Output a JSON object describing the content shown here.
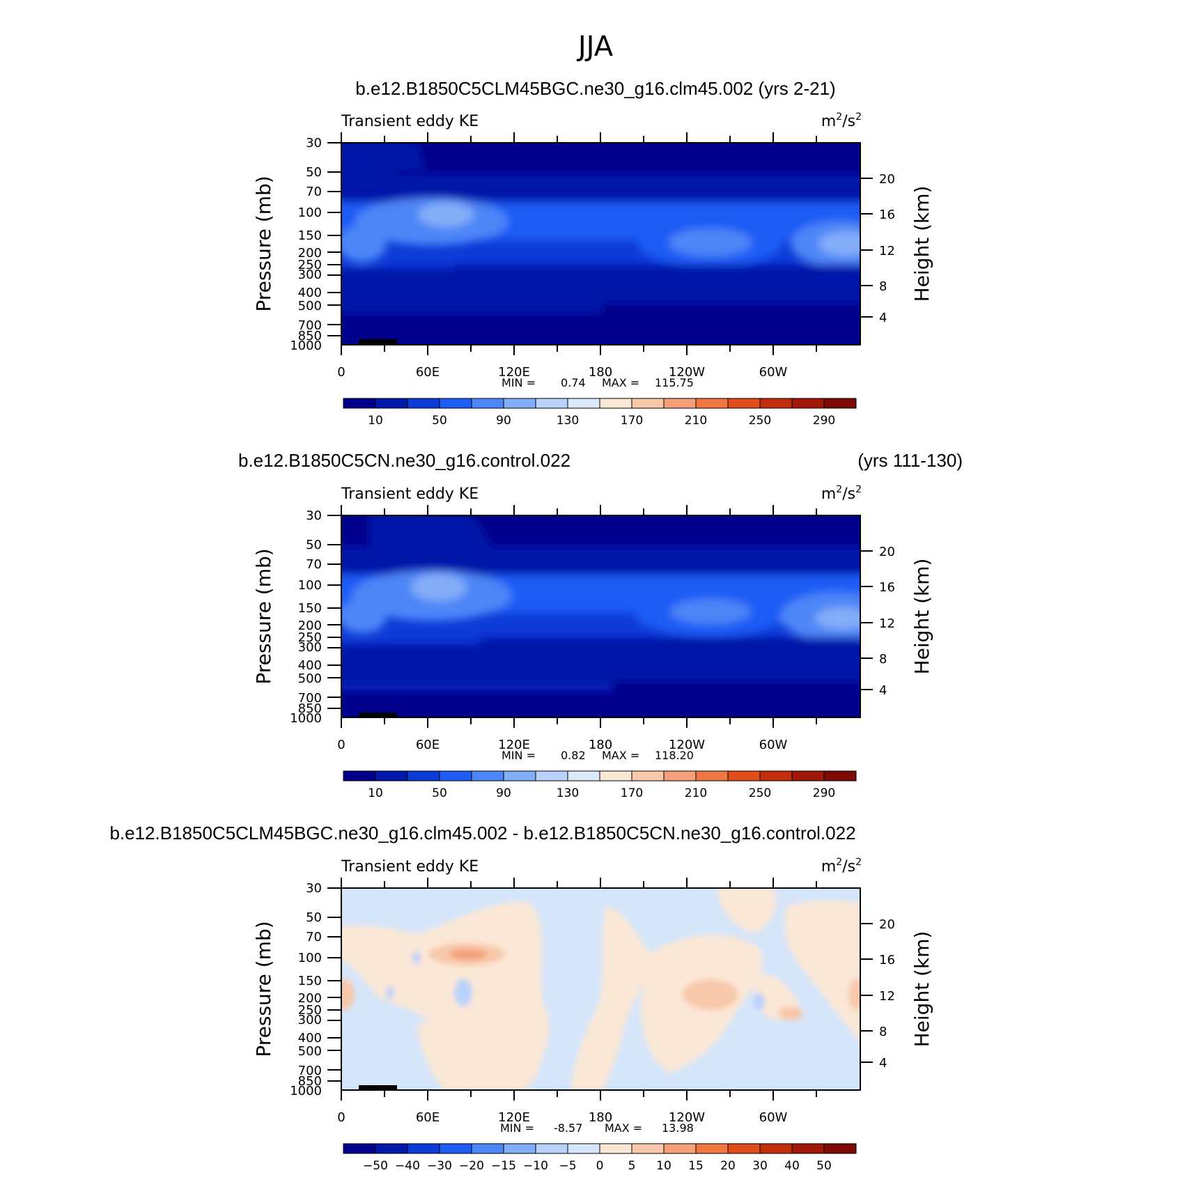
{
  "page_title": "JJA",
  "panels": [
    {
      "case_title": "b.e12.B1850C5CLM45BGC.ne30_g16.clm45.002 (yrs 2-21)",
      "years": "",
      "field_label": "Transient eddy KE",
      "units_base": "m",
      "units_exp1": "2",
      "units_mid": "/s",
      "units_exp2": "2",
      "min_label": "MIN =",
      "min_value": "0.74",
      "max_label": "MAX =",
      "max_value": "115.75",
      "colorbar": {
        "labels": [
          "10",
          "50",
          "90",
          "130",
          "170",
          "210",
          "250",
          "290"
        ],
        "colors": [
          "#00008c",
          "#0019a8",
          "#0d3bd8",
          "#1f5cf5",
          "#4d86f7",
          "#84adf8",
          "#b8d2fb",
          "#ddeafc",
          "#fbe7d6",
          "#f8c8aa",
          "#f5a07a",
          "#f07644",
          "#e04d1a",
          "#c22e0c",
          "#a11808",
          "#7d0a05"
        ]
      }
    },
    {
      "case_title": "b.e12.B1850C5CN.ne30_g16.control.022",
      "years": "(yrs 111-130)",
      "field_label": "Transient eddy KE",
      "units_base": "m",
      "units_exp1": "2",
      "units_mid": "/s",
      "units_exp2": "2",
      "min_label": "MIN =",
      "min_value": "0.82",
      "max_label": "MAX =",
      "max_value": "118.20",
      "colorbar": {
        "labels": [
          "10",
          "50",
          "90",
          "130",
          "170",
          "210",
          "250",
          "290"
        ],
        "colors": [
          "#00008c",
          "#0019a8",
          "#0d3bd8",
          "#1f5cf5",
          "#4d86f7",
          "#84adf8",
          "#b8d2fb",
          "#ddeafc",
          "#fbe7d6",
          "#f8c8aa",
          "#f5a07a",
          "#f07644",
          "#e04d1a",
          "#c22e0c",
          "#a11808",
          "#7d0a05"
        ]
      }
    },
    {
      "case_title": "b.e12.B1850C5CLM45BGC.ne30_g16.clm45.002 - b.e12.B1850C5CN.ne30_g16.control.022",
      "years": "",
      "field_label": "Transient eddy KE",
      "units_base": "m",
      "units_exp1": "2",
      "units_mid": "/s",
      "units_exp2": "2",
      "min_label": "MIN =",
      "min_value": "-8.57",
      "max_label": "MAX =",
      "max_value": "13.98",
      "colorbar": {
        "labels": [
          "−50",
          "−40",
          "−30",
          "−20",
          "−15",
          "−10",
          "−5",
          "0",
          "5",
          "10",
          "15",
          "20",
          "30",
          "40",
          "50"
        ],
        "colors": [
          "#00008c",
          "#0019a8",
          "#0d3bd8",
          "#1f5cf5",
          "#4d86f7",
          "#84adf8",
          "#b8d2fb",
          "#d5e6fb",
          "#fbe7d6",
          "#f8c8aa",
          "#f5a07a",
          "#f07644",
          "#e04d1a",
          "#c22e0c",
          "#a11808",
          "#7d0a05"
        ]
      }
    }
  ],
  "chart_data": [
    {
      "type": "heatmap",
      "title": "b.e12.B1850C5CLM45BGC.ne30_g16.clm45.002 (yrs 2-21)",
      "subtitle": "Transient eddy KE",
      "units": "m2/s2",
      "xlabel": "",
      "ylabel": "Pressure (mb)",
      "y2label": "Height (km)",
      "x_ticks": [
        "0",
        "60E",
        "120E",
        "180",
        "120W",
        "60W"
      ],
      "y_ticks": [
        "30",
        "50",
        "70",
        "100",
        "150",
        "200",
        "250",
        "300",
        "400",
        "500",
        "700",
        "850",
        "1000"
      ],
      "y2_ticks": [
        "20",
        "16",
        "12",
        "8",
        "4"
      ],
      "min": 0.74,
      "max": 115.75,
      "levels": [
        10,
        50,
        90,
        130,
        170,
        210,
        250,
        290
      ]
    },
    {
      "type": "heatmap",
      "title": "b.e12.B1850C5CN.ne30_g16.control.022 (yrs 111-130)",
      "subtitle": "Transient eddy KE",
      "units": "m2/s2",
      "xlabel": "",
      "ylabel": "Pressure (mb)",
      "y2label": "Height (km)",
      "x_ticks": [
        "0",
        "60E",
        "120E",
        "180",
        "120W",
        "60W"
      ],
      "y_ticks": [
        "30",
        "50",
        "70",
        "100",
        "150",
        "200",
        "250",
        "300",
        "400",
        "500",
        "700",
        "850",
        "1000"
      ],
      "y2_ticks": [
        "20",
        "16",
        "12",
        "8",
        "4"
      ],
      "min": 0.82,
      "max": 118.2,
      "levels": [
        10,
        50,
        90,
        130,
        170,
        210,
        250,
        290
      ]
    },
    {
      "type": "heatmap",
      "title": "b.e12.B1850C5CLM45BGC.ne30_g16.clm45.002 - b.e12.B1850C5CN.ne30_g16.control.022",
      "subtitle": "Transient eddy KE",
      "units": "m2/s2",
      "xlabel": "",
      "ylabel": "Pressure (mb)",
      "y2label": "Height (km)",
      "x_ticks": [
        "0",
        "60E",
        "120E",
        "180",
        "120W",
        "60W"
      ],
      "y_ticks": [
        "30",
        "50",
        "70",
        "100",
        "150",
        "200",
        "250",
        "300",
        "400",
        "500",
        "700",
        "850",
        "1000"
      ],
      "y2_ticks": [
        "20",
        "16",
        "12",
        "8",
        "4"
      ],
      "min": -8.57,
      "max": 13.98,
      "levels": [
        -50,
        -40,
        -30,
        -20,
        -15,
        -10,
        -5,
        0,
        5,
        10,
        15,
        20,
        30,
        40,
        50
      ]
    }
  ],
  "axis": {
    "ylabel": "Pressure (mb)",
    "y2label": "Height (km)",
    "x_ticks": [
      "0",
      "60E",
      "120E",
      "180",
      "120W",
      "60W"
    ],
    "y_ticks": [
      "30",
      "50",
      "70",
      "100",
      "150",
      "200",
      "250",
      "300",
      "400",
      "500",
      "700",
      "850",
      "1000"
    ],
    "y2_ticks": [
      "20",
      "16",
      "12",
      "8",
      "4"
    ]
  }
}
